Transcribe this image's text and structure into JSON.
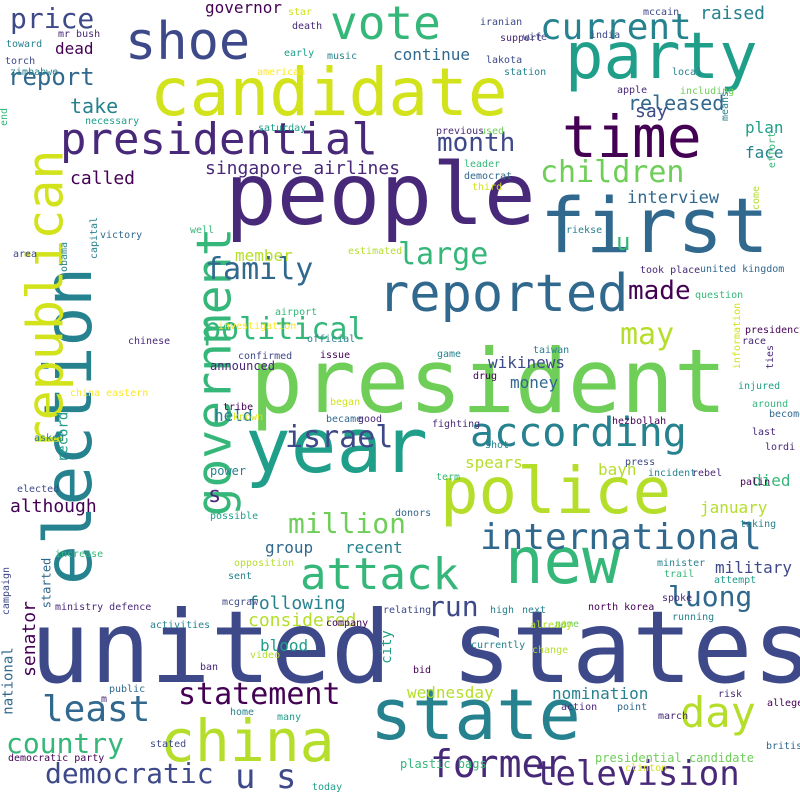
{
  "palette": {
    "background": "#ffffff",
    "colors": [
      "#440154",
      "#482878",
      "#3e4989",
      "#31688e",
      "#26828e",
      "#1f9e89",
      "#35b779",
      "#6ece58",
      "#b5de2b",
      "#fde725"
    ]
  },
  "words": [
    {
      "text": "united states",
      "color": "#3e4989"
    },
    {
      "text": "president",
      "color": "#6ece58"
    },
    {
      "text": "people",
      "color": "#482878"
    },
    {
      "text": "candidate",
      "color": "#d2e21b"
    },
    {
      "text": "election",
      "color": "#26828e"
    },
    {
      "text": "year",
      "color": "#1f9e89"
    },
    {
      "text": "first",
      "color": "#31688e"
    },
    {
      "text": "party",
      "color": "#1f9e89"
    },
    {
      "text": "time",
      "color": "#440154"
    },
    {
      "text": "state",
      "color": "#26828e"
    },
    {
      "text": "china",
      "color": "#b5de2b"
    },
    {
      "text": "new",
      "color": "#35b779"
    },
    {
      "text": "police",
      "color": "#b5de2b"
    },
    {
      "text": "republican",
      "color": "#d2e21b"
    },
    {
      "text": "government",
      "color": "#35b779"
    },
    {
      "text": "reported",
      "color": "#31688e"
    },
    {
      "text": "shoe",
      "color": "#3e4989"
    },
    {
      "text": "vote",
      "color": "#35b779"
    },
    {
      "text": "presidential",
      "color": "#482878"
    },
    {
      "text": "attack",
      "color": "#35b779"
    },
    {
      "text": "according",
      "color": "#26828e"
    },
    {
      "text": "day",
      "color": "#b5de2b"
    },
    {
      "text": "international",
      "color": "#31688e"
    },
    {
      "text": "television",
      "color": "#482878"
    },
    {
      "text": "former",
      "color": "#482878"
    },
    {
      "text": "current",
      "color": "#26828e"
    },
    {
      "text": "family",
      "color": "#31688e"
    },
    {
      "text": "political",
      "color": "#35b779"
    },
    {
      "text": "israel",
      "color": "#3e4989"
    },
    {
      "text": "children",
      "color": "#6ece58"
    },
    {
      "text": "least",
      "color": "#31688e"
    },
    {
      "text": "statement",
      "color": "#440154"
    },
    {
      "text": "country",
      "color": "#35b779"
    },
    {
      "text": "democratic",
      "color": "#3e4989"
    },
    {
      "text": "u s",
      "color": "#3e4989"
    },
    {
      "text": "month",
      "color": "#3e4989"
    },
    {
      "text": "may",
      "color": "#b5de2b"
    },
    {
      "text": "made",
      "color": "#440154"
    },
    {
      "text": "large",
      "color": "#35b779"
    },
    {
      "text": "million",
      "color": "#6ece58"
    },
    {
      "text": "luong",
      "color": "#31688e"
    },
    {
      "text": "run",
      "color": "#3e4989"
    },
    {
      "text": "price",
      "color": "#3e4989"
    },
    {
      "text": "report",
      "color": "#31688e"
    },
    {
      "text": "u",
      "color": "#35b779"
    },
    {
      "text": "s",
      "color": "#482878"
    },
    {
      "text": "singapore airlines",
      "color": "#482878"
    },
    {
      "text": "released",
      "color": "#31688e"
    },
    {
      "text": "governor",
      "color": "#440154"
    },
    {
      "text": "raised",
      "color": "#26828e"
    },
    {
      "text": "say",
      "color": "#3e4989"
    },
    {
      "text": "continue",
      "color": "#31688e"
    },
    {
      "text": "dead",
      "color": "#440154"
    },
    {
      "text": "take",
      "color": "#26828e"
    },
    {
      "text": "called",
      "color": "#440154"
    },
    {
      "text": "interview",
      "color": "#31688e"
    },
    {
      "text": "plan",
      "color": "#1f9e89"
    },
    {
      "text": "face",
      "color": "#26828e"
    },
    {
      "text": "member",
      "color": "#b5de2b"
    },
    {
      "text": "money",
      "color": "#31688e"
    },
    {
      "text": "wikinews",
      "color": "#3e4989"
    },
    {
      "text": "held",
      "color": "#26828e"
    },
    {
      "text": "announced",
      "color": "#482878"
    },
    {
      "text": "spears",
      "color": "#b5de2b"
    },
    {
      "text": "bayh",
      "color": "#b5de2b"
    },
    {
      "text": "died",
      "color": "#35b779"
    },
    {
      "text": "although",
      "color": "#440154"
    },
    {
      "text": "january",
      "color": "#b5de2b"
    },
    {
      "text": "military",
      "color": "#3e4989"
    },
    {
      "text": "group",
      "color": "#31688e"
    },
    {
      "text": "recent",
      "color": "#26828e"
    },
    {
      "text": "following",
      "color": "#26828e"
    },
    {
      "text": "considered",
      "color": "#b5de2b"
    },
    {
      "text": "blood",
      "color": "#1f9e89"
    },
    {
      "text": "senator",
      "color": "#440154"
    },
    {
      "text": "national",
      "color": "#31688e"
    },
    {
      "text": "wednesday",
      "color": "#b5de2b"
    },
    {
      "text": "nomination",
      "color": "#26828e"
    },
    {
      "text": "record",
      "color": "#1f9e89"
    },
    {
      "text": "city",
      "color": "#1f9e89"
    },
    {
      "text": "campaign",
      "color": "#3e4989"
    },
    {
      "text": "presidential candidate",
      "color": "#6ece58"
    },
    {
      "text": "democratic party",
      "color": "#440154"
    },
    {
      "text": "plastic bags",
      "color": "#35b779"
    },
    {
      "text": "united kingdom",
      "color": "#31688e"
    },
    {
      "text": "north korea",
      "color": "#440154"
    },
    {
      "text": "ministry defence",
      "color": "#482878"
    },
    {
      "text": "china eastern",
      "color": "#fde725"
    },
    {
      "text": "mr bush",
      "color": "#482878"
    },
    {
      "text": "zimbabwe",
      "color": "#26828e"
    },
    {
      "text": "took place",
      "color": "#482878"
    },
    {
      "text": "lakota",
      "color": "#3e4989"
    },
    {
      "text": "station",
      "color": "#26828e"
    },
    {
      "text": "including",
      "color": "#6ece58"
    },
    {
      "text": "necessary",
      "color": "#1f9e89"
    },
    {
      "text": "saturday",
      "color": "#1f9e89"
    },
    {
      "text": "previous",
      "color": "#482878"
    },
    {
      "text": "used",
      "color": "#6ece58"
    },
    {
      "text": "leader",
      "color": "#35b779"
    },
    {
      "text": "democrat",
      "color": "#31688e"
    },
    {
      "text": "third",
      "color": "#d2e21b"
    },
    {
      "text": "victory",
      "color": "#31688e"
    },
    {
      "text": "capital",
      "color": "#26828e"
    },
    {
      "text": "obama",
      "color": "#26828e"
    },
    {
      "text": "area",
      "color": "#3e4989"
    },
    {
      "text": "well",
      "color": "#35b779"
    },
    {
      "text": "estimated",
      "color": "#b5de2b"
    },
    {
      "text": "official",
      "color": "#26828e"
    },
    {
      "text": "airport",
      "color": "#35b779"
    },
    {
      "text": "investigation",
      "color": "#fde725"
    },
    {
      "text": "chinese",
      "color": "#482878"
    },
    {
      "text": "confirmed",
      "color": "#3e4989"
    },
    {
      "text": "issue",
      "color": "#440154"
    },
    {
      "text": "drug",
      "color": "#440154"
    },
    {
      "text": "game",
      "color": "#26828e"
    },
    {
      "text": "taiwan",
      "color": "#26828e"
    },
    {
      "text": "question",
      "color": "#35b779"
    },
    {
      "text": "presidency",
      "color": "#440154"
    },
    {
      "text": "race",
      "color": "#482878"
    },
    {
      "text": "ties",
      "color": "#482878"
    },
    {
      "text": "injured",
      "color": "#1f9e89"
    },
    {
      "text": "around",
      "color": "#35b779"
    },
    {
      "text": "become",
      "color": "#31688e"
    },
    {
      "text": "last",
      "color": "#482878"
    },
    {
      "text": "lordi",
      "color": "#482878"
    },
    {
      "text": "tribe",
      "color": "#440154"
    },
    {
      "text": "known",
      "color": "#d2e21b"
    },
    {
      "text": "began",
      "color": "#d2e21b"
    },
    {
      "text": "became",
      "color": "#31688e"
    },
    {
      "text": "good",
      "color": "#482878"
    },
    {
      "text": "fighting",
      "color": "#482878"
    },
    {
      "text": "shot",
      "color": "#26828e"
    },
    {
      "text": "hezbollah",
      "color": "#440154"
    },
    {
      "text": "asked",
      "color": "#26828e"
    },
    {
      "text": "power",
      "color": "#26828e"
    },
    {
      "text": "press",
      "color": "#3e4989"
    },
    {
      "text": "incident",
      "color": "#26828e"
    },
    {
      "text": "rebel",
      "color": "#482878"
    },
    {
      "text": "palin",
      "color": "#440154"
    },
    {
      "text": "term",
      "color": "#35b779"
    },
    {
      "text": "elected",
      "color": "#3e4989"
    },
    {
      "text": "possible",
      "color": "#1f9e89"
    },
    {
      "text": "donors",
      "color": "#31688e"
    },
    {
      "text": "taking",
      "color": "#26828e"
    },
    {
      "text": "increase",
      "color": "#35b779"
    },
    {
      "text": "started",
      "color": "#31688e"
    },
    {
      "text": "opposition",
      "color": "#b5de2b"
    },
    {
      "text": "sent",
      "color": "#26828e"
    },
    {
      "text": "minister",
      "color": "#26828e"
    },
    {
      "text": "spoke",
      "color": "#482878"
    },
    {
      "text": "trail",
      "color": "#35b779"
    },
    {
      "text": "attempt",
      "color": "#1f9e89"
    },
    {
      "text": "mcgraw",
      "color": "#3e4989"
    },
    {
      "text": "relating",
      "color": "#3e4989"
    },
    {
      "text": "high",
      "color": "#26828e"
    },
    {
      "text": "next",
      "color": "#26828e"
    },
    {
      "text": "activities",
      "color": "#26828e"
    },
    {
      "text": "company",
      "color": "#440154"
    },
    {
      "text": "name",
      "color": "#6ece58"
    },
    {
      "text": "running",
      "color": "#26828e"
    },
    {
      "text": "currently",
      "color": "#26828e"
    },
    {
      "text": "change",
      "color": "#b5de2b"
    },
    {
      "text": "already",
      "color": "#b5de2b"
    },
    {
      "text": "video",
      "color": "#b5de2b"
    },
    {
      "text": "ban",
      "color": "#482878"
    },
    {
      "text": "bid",
      "color": "#440154"
    },
    {
      "text": "public",
      "color": "#31688e"
    },
    {
      "text": "m",
      "color": "#482878"
    },
    {
      "text": "action",
      "color": "#482878"
    },
    {
      "text": "point",
      "color": "#31688e"
    },
    {
      "text": "risk",
      "color": "#482878"
    },
    {
      "text": "alleged",
      "color": "#440154"
    },
    {
      "text": "march",
      "color": "#482878"
    },
    {
      "text": "home",
      "color": "#26828e"
    },
    {
      "text": "many",
      "color": "#1f9e89"
    },
    {
      "text": "british",
      "color": "#31688e"
    },
    {
      "text": "stated",
      "color": "#3e4989"
    },
    {
      "text": "clinton",
      "color": "#d2e21b"
    },
    {
      "text": "today",
      "color": "#1f9e89"
    },
    {
      "text": "toward",
      "color": "#26828e"
    },
    {
      "text": "torch",
      "color": "#3e4989"
    },
    {
      "text": "star",
      "color": "#d2e21b"
    },
    {
      "text": "death",
      "color": "#482878"
    },
    {
      "text": "iranian",
      "color": "#3e4989"
    },
    {
      "text": "mccain",
      "color": "#3e4989"
    },
    {
      "text": "support",
      "color": "#482878"
    },
    {
      "text": "wife",
      "color": "#3e4989"
    },
    {
      "text": "india",
      "color": "#3e4989"
    },
    {
      "text": "early",
      "color": "#1f9e89"
    },
    {
      "text": "music",
      "color": "#26828e"
    },
    {
      "text": "american",
      "color": "#fde725"
    },
    {
      "text": "local",
      "color": "#26828e"
    },
    {
      "text": "apple",
      "color": "#482878"
    },
    {
      "text": "means",
      "color": "#26828e"
    },
    {
      "text": "come",
      "color": "#b5de2b"
    },
    {
      "text": "effort",
      "color": "#35b779"
    },
    {
      "text": "information",
      "color": "#d2e21b"
    },
    {
      "text": "end",
      "color": "#35b779"
    },
    {
      "text": "riekse",
      "color": "#26828e"
    },
    {
      "text": "appear",
      "color": "#482878"
    }
  ]
}
